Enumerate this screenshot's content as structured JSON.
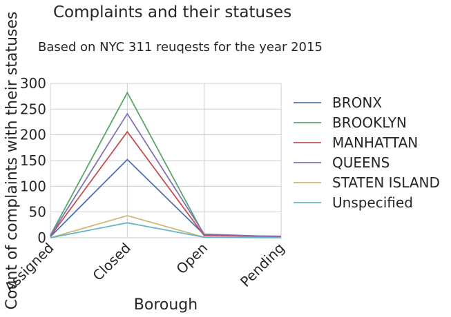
{
  "chart_data": {
    "type": "line",
    "title": "Complaints and their statuses",
    "subtitle": "Based on NYC 311 reuqests for the year 2015",
    "xlabel": "Borough",
    "ylabel": "Count of complaints with their statuses",
    "categories": [
      "Assigned",
      "Closed",
      "Open",
      "Pending"
    ],
    "ylim": [
      0,
      300
    ],
    "yticks": [
      "0",
      "50",
      "100",
      "150",
      "200",
      "250",
      "300"
    ],
    "grid": true,
    "legend_position": "right",
    "series": [
      {
        "name": "BRONX",
        "color": "#4c72b0",
        "values": [
          2,
          152,
          6,
          1
        ]
      },
      {
        "name": "BROOKLYN",
        "color": "#55a868",
        "values": [
          5,
          282,
          5,
          2
        ]
      },
      {
        "name": "MANHATTAN",
        "color": "#c44e52",
        "values": [
          3,
          206,
          4,
          3
        ]
      },
      {
        "name": "QUEENS",
        "color": "#8172b2",
        "values": [
          4,
          241,
          7,
          2
        ]
      },
      {
        "name": "STATEN ISLAND",
        "color": "#ccb974",
        "values": [
          0,
          43,
          1,
          0
        ]
      },
      {
        "name": "Unspecified",
        "color": "#64b5cd",
        "values": [
          0,
          29,
          1,
          0
        ]
      }
    ]
  }
}
